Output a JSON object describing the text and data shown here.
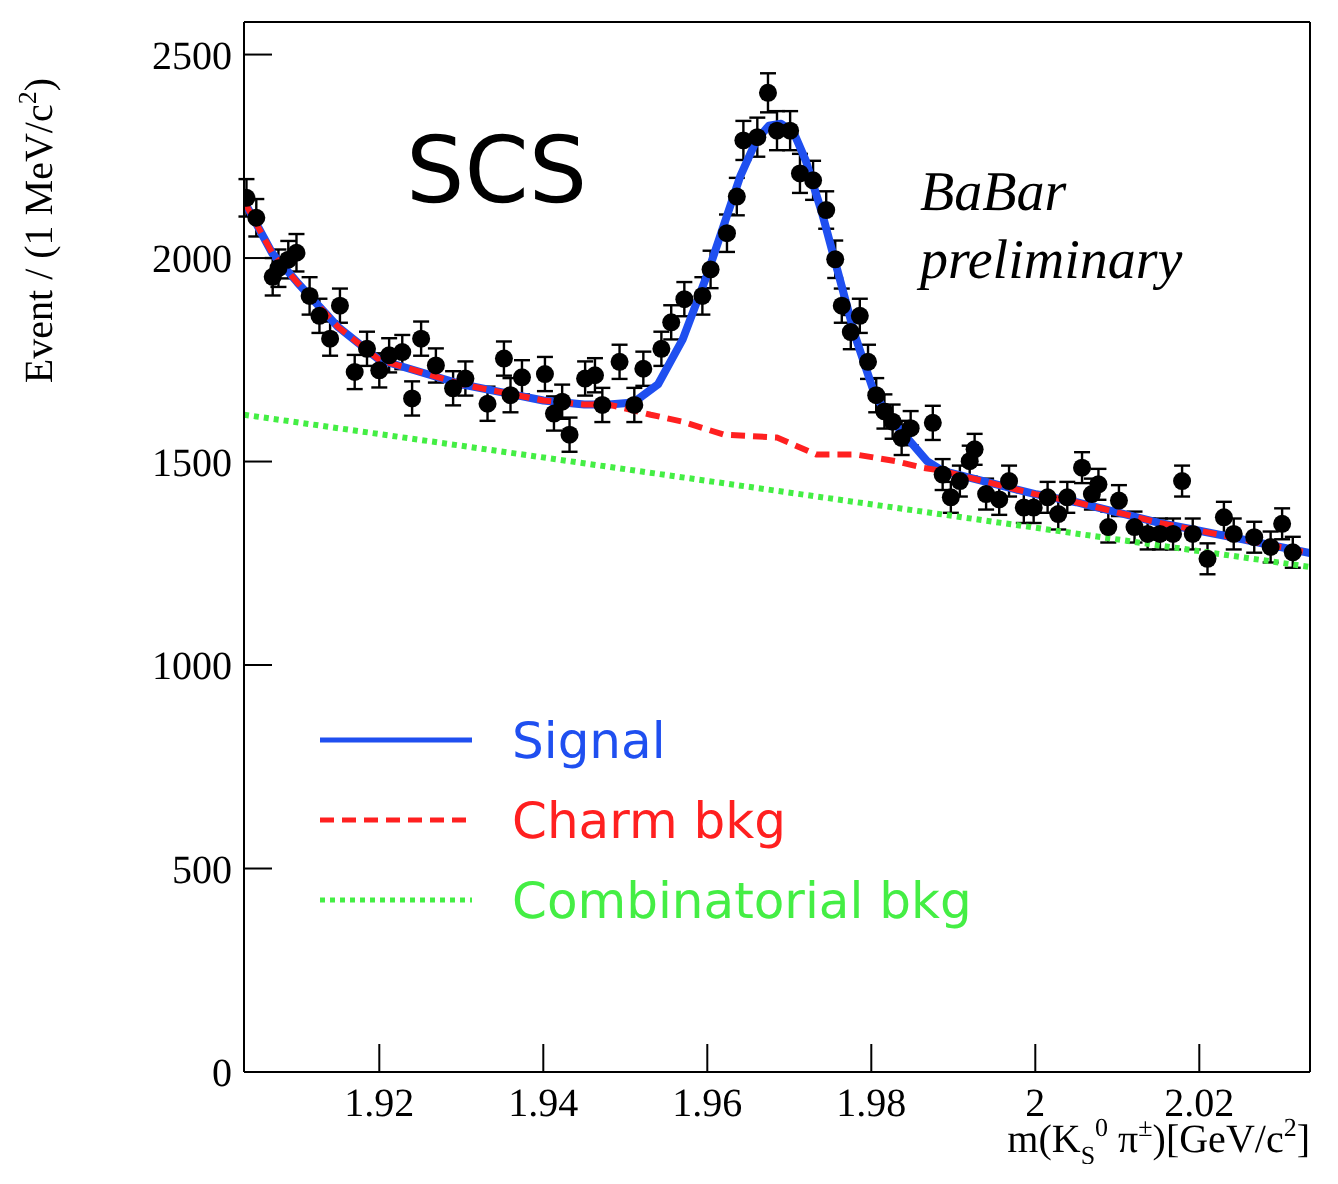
{
  "chart_data": {
    "type": "scatter",
    "ylabel": "Event / (1 MeV/c$^{2}$)",
    "xlabel": "m(K$_{S}$$^{0}$ π$^{±}$)[GeV/c$^{2}$]",
    "annotations": [
      "SCS",
      "BaBar preliminary"
    ],
    "xlim": [
      1.9035,
      2.0335
    ],
    "xticks": [
      1.92,
      1.94,
      1.96,
      1.98,
      2,
      2.02
    ],
    "ylim": [
      0,
      2580
    ],
    "yticks": [
      0,
      500,
      1000,
      1500,
      2000,
      2500
    ],
    "legend": "bottom left",
    "series": [
      {
        "marker": "circle",
        "color": "#000000",
        "x": [
          1.9038,
          1.905,
          1.907,
          1.9077,
          1.9089,
          1.9099,
          1.9115,
          1.9127,
          1.914,
          1.9152,
          1.917,
          1.9185,
          1.92,
          1.9212,
          1.9228,
          1.924,
          1.9251,
          1.9269,
          1.929,
          1.9305,
          1.9332,
          1.9352,
          1.936,
          1.9374,
          1.9402,
          1.9413,
          1.9423,
          1.9432,
          1.9451,
          1.9463,
          1.9472,
          1.9493,
          1.9511,
          1.9522,
          1.9544,
          1.9556,
          1.9572,
          1.9594,
          1.9604,
          1.9624,
          1.9636,
          1.9644,
          1.9661,
          1.9674,
          1.9685,
          1.9701,
          1.9713,
          1.9729,
          1.9745,
          1.9756,
          1.9764,
          1.9775,
          1.9786,
          1.9796,
          1.9806,
          1.9816,
          1.9826,
          1.9837,
          1.9848,
          1.9875,
          1.9887,
          1.9897,
          1.9908,
          1.992,
          1.9926,
          1.994,
          1.9956,
          1.9968,
          1.9986,
          1.9998,
          2.0015,
          2.0028,
          2.0039,
          2.0057,
          2.0069,
          2.0077,
          2.0089,
          2.0102,
          2.0121,
          2.0137,
          2.0152,
          2.0168,
          2.0179,
          2.0192,
          2.021,
          2.023,
          2.0242,
          2.0267,
          2.0287,
          2.0301,
          2.0314
        ],
        "values": [
          2148,
          2099,
          1954,
          1975,
          1996,
          2013,
          1907,
          1858,
          1802,
          1883,
          1720,
          1777,
          1724,
          1761,
          1769,
          1655,
          1802,
          1736,
          1680,
          1704,
          1642,
          1753,
          1663,
          1707,
          1715,
          1618,
          1647,
          1566,
          1704,
          1712,
          1639,
          1745,
          1639,
          1728,
          1777,
          1842,
          1899,
          1907,
          1972,
          2061,
          2151,
          2289,
          2297,
          2406,
          2313,
          2313,
          2208,
          2191,
          2118,
          1997,
          1883,
          1818,
          1858,
          1745,
          1663,
          1623,
          1598,
          1558,
          1582,
          1595,
          1468,
          1412,
          1452,
          1501,
          1530,
          1420,
          1407,
          1452,
          1387,
          1387,
          1412,
          1371,
          1412,
          1485,
          1420,
          1444,
          1339,
          1404,
          1339,
          1322,
          1322,
          1322,
          1452,
          1322,
          1261,
          1363,
          1322,
          1314,
          1290,
          1347,
          1277
        ],
        "errors": [
          46,
          46,
          46,
          46,
          46,
          46,
          46,
          42,
          42,
          42,
          42,
          42,
          42,
          42,
          42,
          42,
          42,
          42,
          42,
          42,
          42,
          42,
          42,
          42,
          42,
          42,
          42,
          42,
          42,
          42,
          42,
          42,
          42,
          42,
          42,
          42,
          42,
          46,
          46,
          46,
          46,
          48,
          48,
          48,
          48,
          48,
          48,
          48,
          46,
          46,
          42,
          42,
          42,
          42,
          42,
          42,
          42,
          42,
          42,
          42,
          38,
          38,
          38,
          38,
          38,
          38,
          38,
          38,
          38,
          38,
          38,
          38,
          38,
          38,
          38,
          38,
          38,
          38,
          38,
          38,
          38,
          38,
          38,
          38,
          38,
          38,
          38,
          38,
          38,
          38,
          38
        ]
      },
      {
        "type": "line",
        "name": "Signal",
        "color": "#1f4ff0",
        "line_style": "solid",
        "x": [
          1.9035,
          1.907,
          1.91,
          1.915,
          1.92,
          1.925,
          1.93,
          1.935,
          1.94,
          1.945,
          1.948,
          1.951,
          1.954,
          1.957,
          1.96,
          1.962,
          1.964,
          1.966,
          1.9675,
          1.969,
          1.9705,
          1.972,
          1.974,
          1.976,
          1.978,
          1.9805,
          1.983,
          1.9868,
          1.9887,
          1.995,
          2.0,
          2.005,
          2.01,
          2.015,
          2.02,
          2.025,
          2.0335
        ],
        "values": [
          2140,
          2010,
          1940,
          1830,
          1750,
          1720,
          1690,
          1670,
          1650,
          1640,
          1640,
          1645,
          1690,
          1800,
          1960,
          2080,
          2200,
          2290,
          2325,
          2330,
          2310,
          2240,
          2110,
          1960,
          1810,
          1660,
          1590,
          1501,
          1477,
          1445,
          1420,
          1400,
          1375,
          1350,
          1330,
          1310,
          1275
        ]
      },
      {
        "type": "line",
        "name": "Charm bkg",
        "color": "#ff2020",
        "line_style": "dashed",
        "x": [
          1.9035,
          1.907,
          1.91,
          1.915,
          1.92,
          1.925,
          1.93,
          1.935,
          1.94,
          1.945,
          1.948,
          1.9531,
          1.957,
          1.962,
          1.9685,
          1.9733,
          1.9782,
          1.983,
          1.9862,
          1.9887,
          1.995,
          2.0,
          2.005,
          2.01,
          2.015,
          2.02,
          2.025,
          2.0335
        ],
        "values": [
          2140,
          2010,
          1940,
          1830,
          1750,
          1720,
          1690,
          1670,
          1650,
          1640,
          1640,
          1615,
          1598,
          1566,
          1559,
          1517,
          1517,
          1501,
          1485,
          1477,
          1445,
          1420,
          1400,
          1375,
          1350,
          1330,
          1310,
          1275
        ]
      },
      {
        "type": "line",
        "name": "Combinatorial bkg",
        "color": "#44ee44",
        "line_style": "dotted",
        "x": [
          1.9035,
          2.0335
        ],
        "values": [
          1615,
          1241
        ]
      }
    ]
  }
}
